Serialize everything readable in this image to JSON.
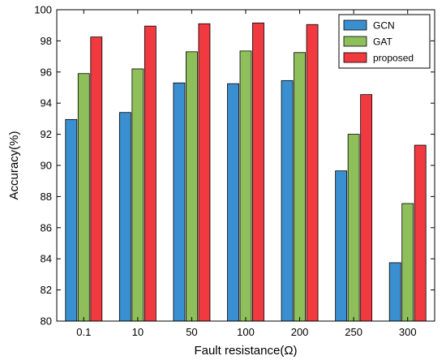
{
  "chart_data": {
    "type": "bar",
    "xlabel": "Fault resistance(Ω)",
    "ylabel": "Accuracy(%)",
    "ylim": [
      80,
      100
    ],
    "yticks": [
      80,
      82,
      84,
      86,
      88,
      90,
      92,
      94,
      96,
      98,
      100
    ],
    "categories": [
      "0.1",
      "10",
      "50",
      "100",
      "200",
      "250",
      "300"
    ],
    "grid": false,
    "legend_position": "top-right",
    "series": [
      {
        "name": "GCN",
        "color": "#3a8fd0",
        "values": [
          92.95,
          93.4,
          95.3,
          95.25,
          95.45,
          89.65,
          83.75
        ]
      },
      {
        "name": "GAT",
        "color": "#8fbf5a",
        "values": [
          95.9,
          96.2,
          97.3,
          97.35,
          97.25,
          92.0,
          87.55
        ]
      },
      {
        "name": "proposed",
        "color": "#f03a40",
        "values": [
          98.25,
          98.95,
          99.1,
          99.15,
          99.05,
          94.55,
          91.3
        ]
      }
    ]
  }
}
